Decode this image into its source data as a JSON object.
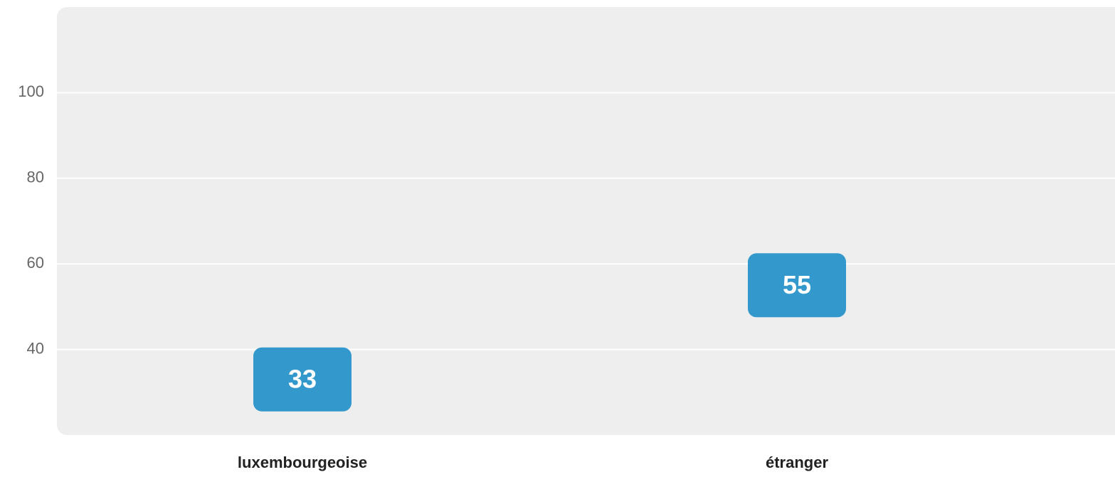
{
  "chart_data": {
    "type": "dot",
    "categories": [
      "luxembourgeoise",
      "étranger"
    ],
    "values": [
      33,
      55
    ],
    "color": "#3399cc",
    "ylim": [
      20,
      120
    ],
    "yticks": [
      40,
      60,
      80,
      100
    ],
    "grid": true
  }
}
